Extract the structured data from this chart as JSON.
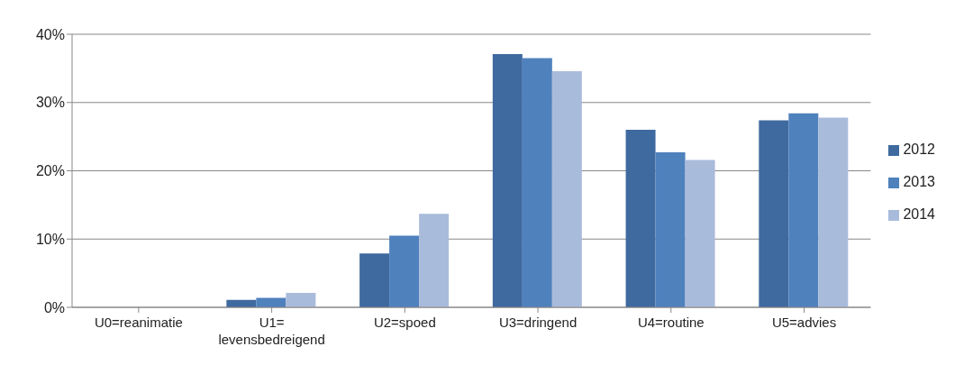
{
  "chart_data": {
    "type": "bar",
    "categories": [
      "U0=reanimatie",
      "U1= levensbedreigend",
      "U2=spoed",
      "U3=dringend",
      "U4=routine",
      "U5=advies"
    ],
    "series": [
      {
        "name": "2012",
        "color": "#3f6a9f",
        "values": [
          0,
          1.1,
          7.9,
          37.1,
          26.0,
          27.4
        ]
      },
      {
        "name": "2013",
        "color": "#4f81bd",
        "values": [
          0,
          1.4,
          10.5,
          36.5,
          22.7,
          28.4
        ]
      },
      {
        "name": "2014",
        "color": "#a9bbdb",
        "values": [
          0,
          2.1,
          13.7,
          34.6,
          21.6,
          27.8
        ]
      }
    ],
    "ylim": [
      0,
      40
    ],
    "yticks": [
      {
        "value": 0,
        "label": "0%"
      },
      {
        "value": 10,
        "label": "10%"
      },
      {
        "value": 20,
        "label": "20%"
      },
      {
        "value": 30,
        "label": "30%"
      },
      {
        "value": 40,
        "label": "40%"
      }
    ],
    "grid": "y",
    "legend": "right"
  }
}
